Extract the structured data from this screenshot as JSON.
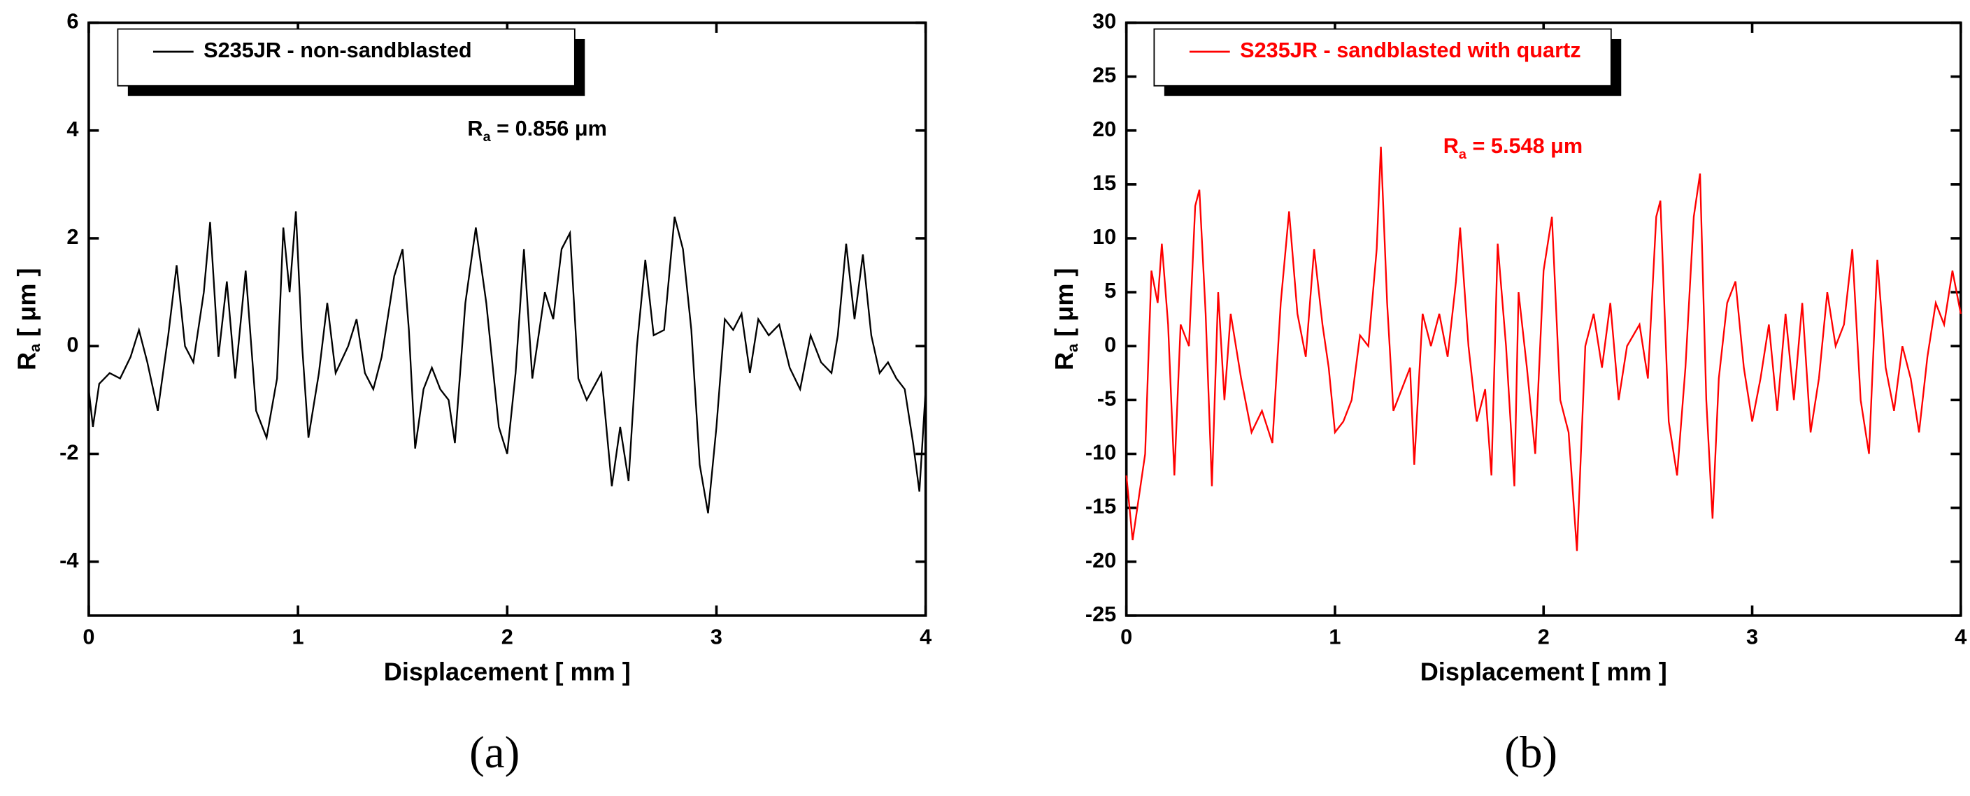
{
  "chart_data": [
    {
      "type": "line",
      "panel_label": "(a)",
      "x_label": "Displacement [ mm ]",
      "y_label": [
        "R",
        "a",
        " [ μm ]"
      ],
      "annotation": [
        "R",
        "a",
        " = 0.856 μm"
      ],
      "xlim": [
        0,
        4
      ],
      "xticks": [
        0,
        1,
        2,
        3,
        4
      ],
      "ylim": [
        -5,
        6
      ],
      "yticks": [
        -4,
        -2,
        0,
        2,
        4,
        6
      ],
      "series": [
        {
          "name": "S235JR - non-sandblasted",
          "color": "#000000",
          "x": [
            0,
            0.02,
            0.05,
            0.1,
            0.15,
            0.2,
            0.24,
            0.28,
            0.33,
            0.38,
            0.42,
            0.46,
            0.5,
            0.55,
            0.58,
            0.62,
            0.66,
            0.7,
            0.75,
            0.8,
            0.85,
            0.9,
            0.93,
            0.96,
            0.99,
            1.02,
            1.05,
            1.1,
            1.14,
            1.18,
            1.24,
            1.28,
            1.32,
            1.36,
            1.4,
            1.46,
            1.5,
            1.53,
            1.56,
            1.6,
            1.64,
            1.68,
            1.72,
            1.75,
            1.8,
            1.85,
            1.9,
            1.96,
            2.0,
            2.04,
            2.08,
            2.12,
            2.18,
            2.22,
            2.26,
            2.3,
            2.34,
            2.38,
            2.45,
            2.5,
            2.54,
            2.58,
            2.62,
            2.66,
            2.7,
            2.75,
            2.8,
            2.84,
            2.88,
            2.92,
            2.96,
            3.0,
            3.04,
            3.08,
            3.12,
            3.16,
            3.2,
            3.25,
            3.3,
            3.35,
            3.4,
            3.45,
            3.5,
            3.55,
            3.58,
            3.62,
            3.66,
            3.7,
            3.74,
            3.78,
            3.82,
            3.86,
            3.9,
            3.94,
            3.97,
            4.0
          ],
          "values": [
            -0.8,
            -1.5,
            -0.7,
            -0.5,
            -0.6,
            -0.2,
            0.3,
            -0.3,
            -1.2,
            0.2,
            1.5,
            0,
            -0.3,
            1.0,
            2.3,
            -0.2,
            1.2,
            -0.6,
            1.4,
            -1.2,
            -1.7,
            -0.6,
            2.2,
            1.0,
            2.5,
            0,
            -1.7,
            -0.5,
            0.8,
            -0.5,
            0,
            0.5,
            -0.5,
            -0.8,
            -0.2,
            1.3,
            1.8,
            0.3,
            -1.9,
            -0.8,
            -0.4,
            -0.8,
            -1.0,
            -1.8,
            0.8,
            2.2,
            0.8,
            -1.5,
            -2.0,
            -0.5,
            1.8,
            -0.6,
            1.0,
            0.5,
            1.8,
            2.1,
            -0.6,
            -1.0,
            -0.5,
            -2.6,
            -1.5,
            -2.5,
            0,
            1.6,
            0.2,
            0.3,
            2.4,
            1.8,
            0.3,
            -2.2,
            -3.1,
            -1.5,
            0.5,
            0.3,
            0.6,
            -0.5,
            0.5,
            0.2,
            0.4,
            -0.4,
            -0.8,
            0.2,
            -0.3,
            -0.5,
            0.2,
            1.9,
            0.5,
            1.7,
            0.2,
            -0.5,
            -0.3,
            -0.6,
            -0.8,
            -1.8,
            -2.7,
            -0.8
          ]
        }
      ]
    },
    {
      "type": "line",
      "panel_label": "(b)",
      "x_label": "Displacement [ mm ]",
      "y_label": [
        "R",
        "a",
        " [ μm ]"
      ],
      "annotation": [
        "R",
        "a",
        " = 5.548 μm"
      ],
      "xlim": [
        0,
        4
      ],
      "xticks": [
        0,
        1,
        2,
        3,
        4
      ],
      "ylim": [
        -25,
        30
      ],
      "yticks": [
        -25,
        -20,
        -15,
        -10,
        -5,
        0,
        5,
        10,
        15,
        20,
        25,
        30
      ],
      "series": [
        {
          "name": "S235JR - sandblasted with quartz",
          "color": "#ff0000",
          "x": [
            0,
            0.03,
            0.06,
            0.09,
            0.12,
            0.15,
            0.17,
            0.2,
            0.23,
            0.26,
            0.3,
            0.33,
            0.35,
            0.38,
            0.41,
            0.44,
            0.47,
            0.5,
            0.55,
            0.6,
            0.65,
            0.7,
            0.74,
            0.78,
            0.82,
            0.86,
            0.9,
            0.94,
            0.97,
            1.0,
            1.04,
            1.08,
            1.12,
            1.16,
            1.2,
            1.22,
            1.25,
            1.28,
            1.32,
            1.36,
            1.38,
            1.42,
            1.46,
            1.5,
            1.54,
            1.58,
            1.6,
            1.64,
            1.68,
            1.72,
            1.75,
            1.78,
            1.82,
            1.86,
            1.88,
            1.92,
            1.96,
            2.0,
            2.04,
            2.08,
            2.12,
            2.16,
            2.2,
            2.24,
            2.28,
            2.32,
            2.36,
            2.4,
            2.46,
            2.5,
            2.54,
            2.56,
            2.6,
            2.64,
            2.68,
            2.72,
            2.75,
            2.78,
            2.81,
            2.84,
            2.88,
            2.92,
            2.96,
            3.0,
            3.04,
            3.08,
            3.12,
            3.16,
            3.2,
            3.24,
            3.28,
            3.32,
            3.36,
            3.4,
            3.44,
            3.48,
            3.52,
            3.56,
            3.6,
            3.64,
            3.68,
            3.72,
            3.76,
            3.8,
            3.84,
            3.88,
            3.92,
            3.96,
            4.0
          ],
          "values": [
            -12,
            -18,
            -14,
            -10,
            7,
            4,
            9.5,
            2,
            -12,
            2,
            0,
            13,
            14.5,
            3,
            -13,
            5,
            -5,
            3,
            -3,
            -8,
            -6,
            -9,
            4,
            12.5,
            3,
            -1,
            9,
            2,
            -2,
            -8,
            -7,
            -5,
            1,
            0,
            9,
            18.5,
            4,
            -6,
            -4,
            -2,
            -11,
            3,
            0,
            3,
            -1,
            6,
            11,
            0,
            -7,
            -4,
            -12,
            9.5,
            0,
            -13,
            5,
            -2,
            -10,
            7,
            12,
            -5,
            -8,
            -19,
            0,
            3,
            -2,
            4,
            -5,
            0,
            2,
            -3,
            12,
            13.5,
            -7,
            -12,
            -2,
            12,
            16,
            -5,
            -16,
            -3,
            4,
            6,
            -2,
            -7,
            -3,
            2,
            -6,
            3,
            -5,
            4,
            -8,
            -3,
            5,
            0,
            2,
            9,
            -5,
            -10,
            8,
            -2,
            -6,
            0,
            -3,
            -8,
            -1,
            4,
            2,
            7,
            3
          ]
        }
      ]
    }
  ]
}
